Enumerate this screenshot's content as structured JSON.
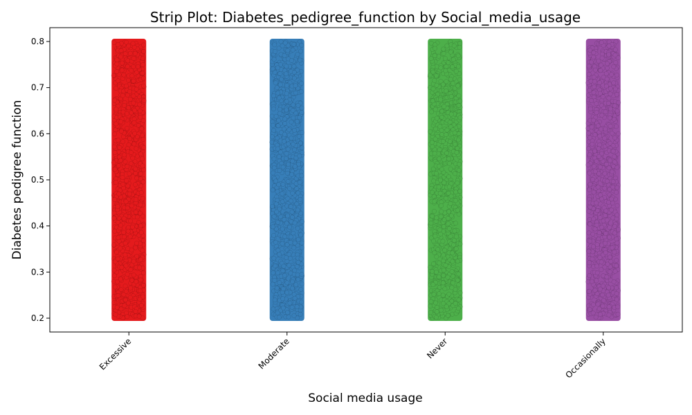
{
  "chart_data": {
    "type": "scatter",
    "subtype": "strip",
    "title": "Strip Plot: Diabetes_pedigree_function by Social_media_usage",
    "xlabel": "Social media usage",
    "ylabel": "Diabetes pedigree function",
    "categories": [
      "Excessive",
      "Moderate",
      "Never",
      "Occasionally"
    ],
    "colors": [
      "#e41a1c",
      "#377eb8",
      "#4daf4a",
      "#984ea3"
    ],
    "ylim": [
      0.17,
      0.83
    ],
    "yticks": [
      "0.2",
      "0.3",
      "0.4",
      "0.5",
      "0.6",
      "0.7",
      "0.8"
    ],
    "series": [
      {
        "category": "Excessive",
        "min": 0.2,
        "max": 0.8
      },
      {
        "category": "Moderate",
        "min": 0.2,
        "max": 0.8
      },
      {
        "category": "Never",
        "min": 0.2,
        "max": 0.8
      },
      {
        "category": "Occasionally",
        "min": 0.2,
        "max": 0.8
      }
    ],
    "grid": false,
    "xtick_rotation": 45
  }
}
